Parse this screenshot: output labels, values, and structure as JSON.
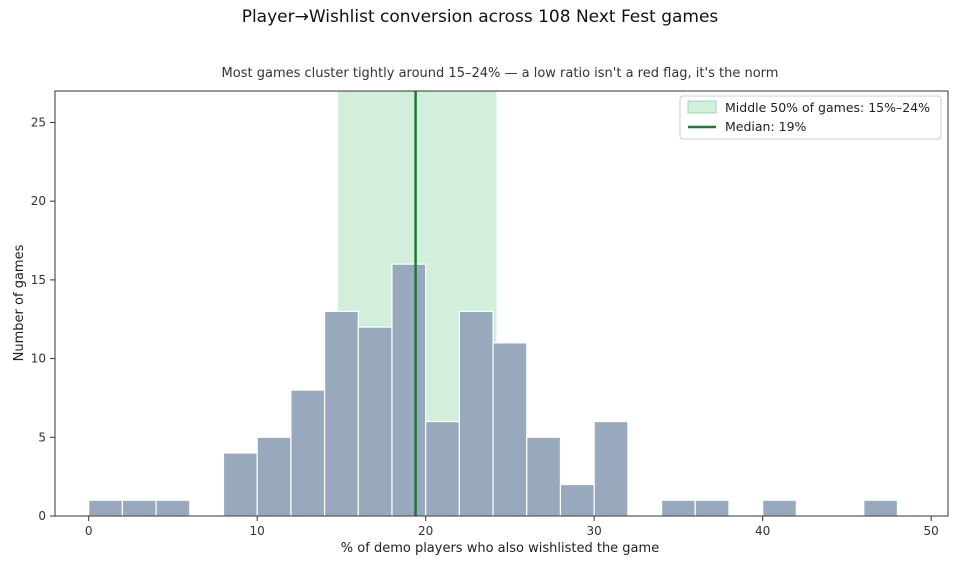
{
  "chart_data": {
    "type": "bar",
    "title": "Player→Wishlist conversion across 108 Next Fest games",
    "subtitle": "Most games cluster tightly around 15–24% — a low ratio isn't a red flag, it's the norm",
    "xlabel": "% of demo players who also wishlisted the game",
    "ylabel": "Number of games",
    "xlim": [
      -2,
      51
    ],
    "ylim": [
      0,
      27
    ],
    "xticks": [
      0,
      10,
      20,
      30,
      40,
      50
    ],
    "yticks": [
      0,
      5,
      10,
      15,
      20,
      25
    ],
    "bin_width": 2,
    "bins": [
      {
        "start": 0,
        "count": 1
      },
      {
        "start": 2,
        "count": 1
      },
      {
        "start": 4,
        "count": 1
      },
      {
        "start": 8,
        "count": 4
      },
      {
        "start": 10,
        "count": 5
      },
      {
        "start": 12,
        "count": 8
      },
      {
        "start": 14,
        "count": 13
      },
      {
        "start": 16,
        "count": 12
      },
      {
        "start": 18,
        "count": 16
      },
      {
        "start": 20,
        "count": 6
      },
      {
        "start": 22,
        "count": 13
      },
      {
        "start": 24,
        "count": 11
      },
      {
        "start": 26,
        "count": 5
      },
      {
        "start": 28,
        "count": 2
      },
      {
        "start": 30,
        "count": 6
      },
      {
        "start": 34,
        "count": 1
      },
      {
        "start": 36,
        "count": 1
      },
      {
        "start": 40,
        "count": 1
      },
      {
        "start": 46,
        "count": 1
      }
    ],
    "iqr_band": {
      "from": 14.8,
      "to": 24.2,
      "label": "Middle 50% of games: 15%–24%"
    },
    "median": {
      "value": 19.4,
      "label": "Median: 19%"
    },
    "legend_position": "top-right",
    "grid": false,
    "colors": {
      "bar": "#98a9bd",
      "bar_edge": "#ffffff",
      "band": "#d2efdc",
      "median": "#1e7a33",
      "axis": "#333333"
    }
  }
}
